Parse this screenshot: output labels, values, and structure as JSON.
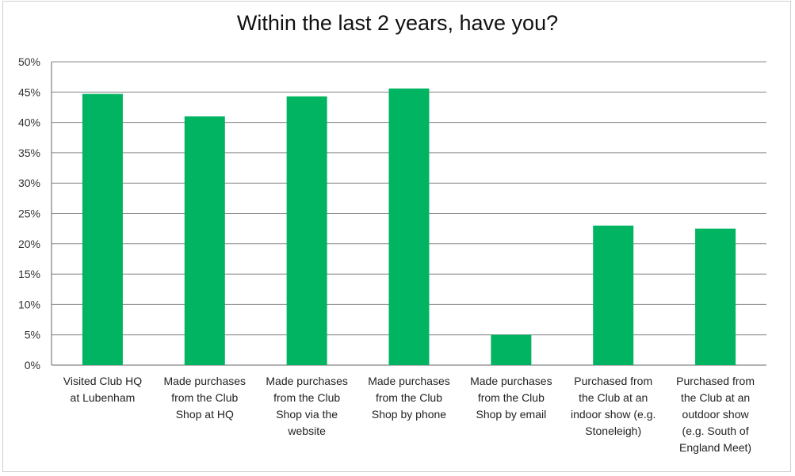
{
  "chart_data": {
    "type": "bar",
    "title": "Within the last 2 years, have you?",
    "xlabel": "",
    "ylabel": "",
    "ylim": [
      0,
      0.5
    ],
    "yticks": [
      "0%",
      "5%",
      "10%",
      "15%",
      "20%",
      "25%",
      "30%",
      "35%",
      "40%",
      "45%",
      "50%"
    ],
    "grid": true,
    "categories": [
      [
        "Visited Club HQ",
        "at Lubenham"
      ],
      [
        "Made purchases",
        "from the Club",
        "Shop at HQ"
      ],
      [
        "Made purchases",
        "from the Club",
        "Shop via the",
        "website"
      ],
      [
        "Made purchases",
        "from the Club",
        "Shop by phone"
      ],
      [
        "Made purchases",
        "from the Club",
        "Shop by email"
      ],
      [
        "Purchased from",
        "the Club at an",
        "indoor show (e.g.",
        "Stoneleigh)"
      ],
      [
        "Purchased from",
        "the Club at an",
        "outdoor show",
        "(e.g. South of",
        "England Meet)"
      ]
    ],
    "values": [
      0.447,
      0.41,
      0.443,
      0.456,
      0.05,
      0.23,
      0.225
    ],
    "bar_color": "#00B461",
    "grid_color": "#8a8a8a"
  }
}
